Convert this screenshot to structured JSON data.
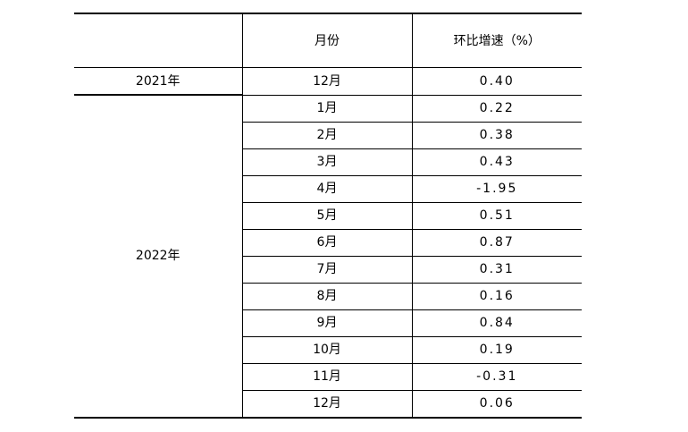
{
  "table": {
    "headers": [
      "",
      "月份",
      "环比增速（%）"
    ],
    "groups": [
      {
        "year": "2021年",
        "rows": [
          {
            "month": "12月",
            "value": "0.40"
          }
        ]
      },
      {
        "year": "2022年",
        "rows": [
          {
            "month": "1月",
            "value": "0.22"
          },
          {
            "month": "2月",
            "value": "0.38"
          },
          {
            "month": "3月",
            "value": "0.43"
          },
          {
            "month": "4月",
            "value": "-1.95"
          },
          {
            "month": "5月",
            "value": "0.51"
          },
          {
            "month": "6月",
            "value": "0.87"
          },
          {
            "month": "7月",
            "value": "0.31"
          },
          {
            "month": "8月",
            "value": "0.16"
          },
          {
            "month": "9月",
            "value": "0.84"
          },
          {
            "month": "10月",
            "value": "0.19"
          },
          {
            "month": "11月",
            "value": "-0.31"
          },
          {
            "month": "12月",
            "value": "0.06"
          }
        ]
      }
    ]
  }
}
